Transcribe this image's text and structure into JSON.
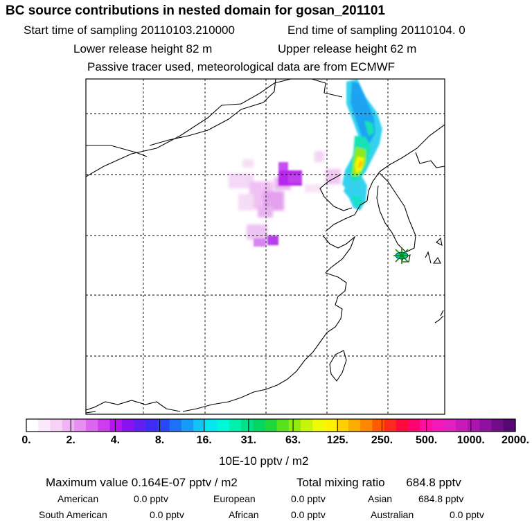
{
  "header": {
    "title": "BC  source contributions in nested domain for gosan_201101",
    "start_time": "Start time of sampling 20110103.210000",
    "end_time": "End time of sampling 20110104.     0",
    "lower_release": "Lower release height   82 m",
    "upper_release": "Upper release height   62 m",
    "tracer_note": "Passive tracer used, meteorological data are from ECMWF"
  },
  "chart_data": {
    "type": "heatmap",
    "title": "BC  source contributions in nested domain for gosan_201101",
    "colorbar": {
      "ticks": [
        "0.",
        "2.",
        "4.",
        "8.",
        "16.",
        "31.",
        "63.",
        "125.",
        "250.",
        "500.",
        "1000.",
        "2000."
      ],
      "units": "10E-10 pptv / m2",
      "colors": [
        "#ffffff",
        "#fbe8fb",
        "#f7d2f7",
        "#f0b4f4",
        "#e68ef2",
        "#dc66ee",
        "#cf3cf0",
        "#b814f2",
        "#8a14f0",
        "#6020f0",
        "#3c2cf4",
        "#2848f6",
        "#1e72f8",
        "#169cf8",
        "#10c4f6",
        "#06e6f0",
        "#00f8da",
        "#00f0b0",
        "#00e28a",
        "#04d664",
        "#1ed83a",
        "#58e21c",
        "#90ec10",
        "#c6f40a",
        "#eefa06",
        "#fff200",
        "#ffd000",
        "#ffac00",
        "#ff8600",
        "#ff5a00",
        "#ff2a1c",
        "#ff0a3c",
        "#ff0470",
        "#ff10a0",
        "#f418b8",
        "#e020c0",
        "#c81ab8",
        "#ae14ae",
        "#9010a0",
        "#700c88",
        "#540870"
      ]
    },
    "summary": {
      "maximum_label": "Maximum value",
      "maximum_value": "0.164E-07 pptv / m2",
      "total_label": "Total mixing ratio",
      "total_value": "684.8 pptv"
    },
    "regions": [
      {
        "name": "American",
        "value": "0.0 pptv"
      },
      {
        "name": "European",
        "value": "0.0 pptv"
      },
      {
        "name": "Asian",
        "value": "684.8 pptv"
      },
      {
        "name": "South American",
        "value": "0.0 pptv"
      },
      {
        "name": "African",
        "value": "0.0 pptv"
      },
      {
        "name": "Australian",
        "value": "0.0 pptv"
      }
    ],
    "receptor": "gosan",
    "grid": true
  },
  "colors": {
    "coast": "#000000",
    "grid": "#000000",
    "marker_fill": "#00c8d0",
    "marker_star": "#00a000"
  }
}
